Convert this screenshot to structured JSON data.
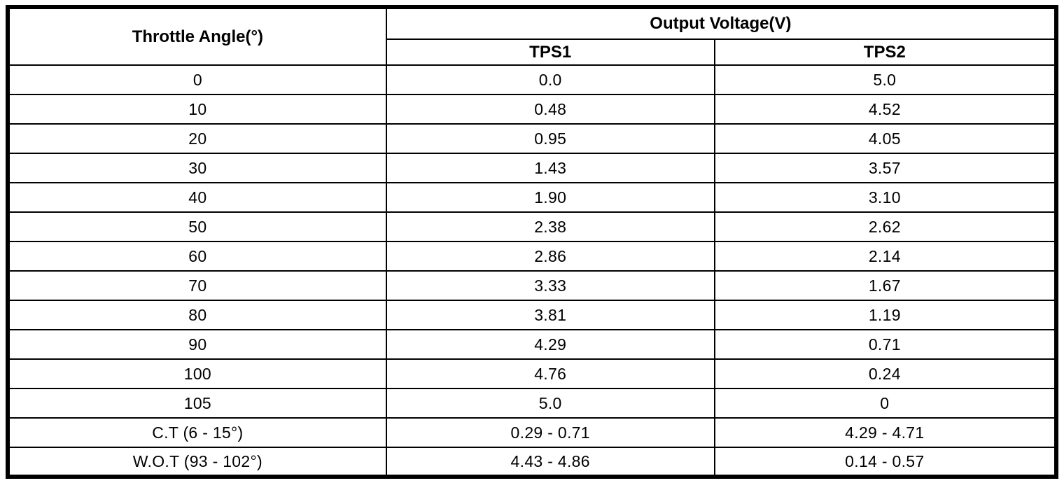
{
  "table": {
    "angle_header": "Throttle Angle(°)",
    "voltage_group_header": "Output Voltage(V)",
    "sub_headers": [
      "TPS1",
      "TPS2"
    ],
    "rows": [
      {
        "angle": "0",
        "tps1": "0.0",
        "tps2": "5.0"
      },
      {
        "angle": "10",
        "tps1": "0.48",
        "tps2": "4.52"
      },
      {
        "angle": "20",
        "tps1": "0.95",
        "tps2": "4.05"
      },
      {
        "angle": "30",
        "tps1": "1.43",
        "tps2": "3.57"
      },
      {
        "angle": "40",
        "tps1": "1.90",
        "tps2": "3.10"
      },
      {
        "angle": "50",
        "tps1": "2.38",
        "tps2": "2.62"
      },
      {
        "angle": "60",
        "tps1": "2.86",
        "tps2": "2.14"
      },
      {
        "angle": "70",
        "tps1": "3.33",
        "tps2": "1.67"
      },
      {
        "angle": "80",
        "tps1": "3.81",
        "tps2": "1.19"
      },
      {
        "angle": "90",
        "tps1": "4.29",
        "tps2": "0.71"
      },
      {
        "angle": "100",
        "tps1": "4.76",
        "tps2": "0.24"
      },
      {
        "angle": "105",
        "tps1": "5.0",
        "tps2": "0"
      },
      {
        "angle": "C.T (6 - 15°)",
        "tps1": "0.29 - 0.71",
        "tps2": "4.29 - 4.71"
      },
      {
        "angle": "W.O.T (93 - 102°)",
        "tps1": "4.43 - 4.86",
        "tps2": "0.14 - 0.57"
      }
    ],
    "colors": {
      "border": "#000000",
      "text": "#000000",
      "background": "#ffffff"
    }
  }
}
